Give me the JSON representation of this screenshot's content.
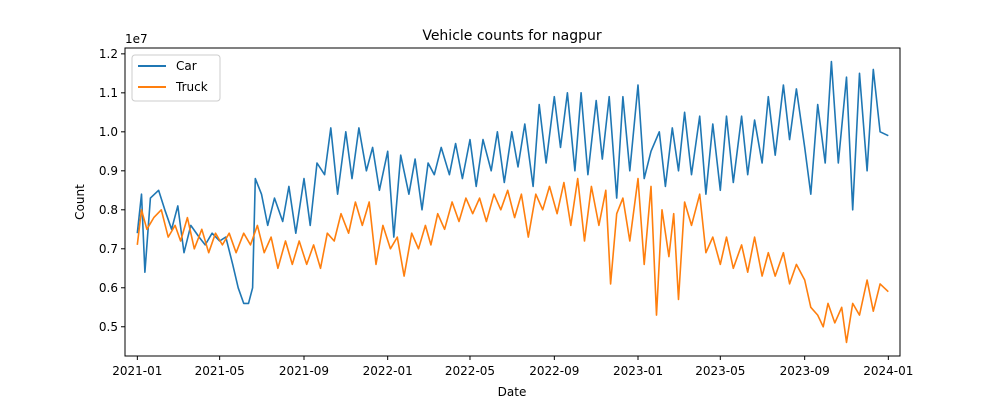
{
  "chart_data": {
    "type": "line",
    "title": "Vehicle counts for nagpur",
    "xlabel": "Date",
    "ylabel": "Count",
    "y_offset_text": "1e7",
    "x_range": [
      "2020-12-14",
      "2024-01-18"
    ],
    "ylim": [
      4.25,
      12.15
    ],
    "x_ticks": [
      "2021-01",
      "2021-05",
      "2021-09",
      "2022-01",
      "2022-05",
      "2022-09",
      "2023-01",
      "2023-05",
      "2023-09",
      "2024-01"
    ],
    "y_ticks": [
      "0.5",
      "0.6",
      "0.7",
      "0.8",
      "0.9",
      "1.0",
      "1.1",
      "1.2"
    ],
    "grid": false,
    "legend": {
      "placement": "top-left"
    },
    "series": [
      {
        "name": "Car",
        "color": "#1f77b4",
        "points": [
          [
            "2021-01-01",
            7.4
          ],
          [
            "2021-01-07",
            8.4
          ],
          [
            "2021-01-12",
            6.4
          ],
          [
            "2021-01-20",
            8.3
          ],
          [
            "2021-02-01",
            8.5
          ],
          [
            "2021-02-10",
            8.0
          ],
          [
            "2021-02-20",
            7.5
          ],
          [
            "2021-03-01",
            8.1
          ],
          [
            "2021-03-10",
            6.9
          ],
          [
            "2021-03-20",
            7.6
          ],
          [
            "2021-04-01",
            7.3
          ],
          [
            "2021-04-10",
            7.1
          ],
          [
            "2021-04-20",
            7.4
          ],
          [
            "2021-05-01",
            7.2
          ],
          [
            "2021-05-10",
            7.3
          ],
          [
            "2021-05-20",
            6.6
          ],
          [
            "2021-05-28",
            6.0
          ],
          [
            "2021-06-05",
            5.6
          ],
          [
            "2021-06-12",
            5.6
          ],
          [
            "2021-06-18",
            6.0
          ],
          [
            "2021-06-22",
            8.8
          ],
          [
            "2021-07-01",
            8.4
          ],
          [
            "2021-07-10",
            7.6
          ],
          [
            "2021-07-20",
            8.3
          ],
          [
            "2021-08-01",
            7.7
          ],
          [
            "2021-08-10",
            8.6
          ],
          [
            "2021-08-20",
            7.4
          ],
          [
            "2021-09-01",
            8.8
          ],
          [
            "2021-09-10",
            7.6
          ],
          [
            "2021-09-20",
            9.2
          ],
          [
            "2021-10-01",
            8.9
          ],
          [
            "2021-10-10",
            10.1
          ],
          [
            "2021-10-20",
            8.4
          ],
          [
            "2021-11-01",
            10.0
          ],
          [
            "2021-11-10",
            8.8
          ],
          [
            "2021-11-20",
            10.1
          ],
          [
            "2021-12-01",
            9.0
          ],
          [
            "2021-12-10",
            9.6
          ],
          [
            "2021-12-20",
            8.5
          ],
          [
            "2022-01-01",
            9.5
          ],
          [
            "2022-01-10",
            7.3
          ],
          [
            "2022-01-20",
            9.4
          ],
          [
            "2022-02-01",
            8.4
          ],
          [
            "2022-02-10",
            9.3
          ],
          [
            "2022-02-20",
            8.0
          ],
          [
            "2022-03-01",
            9.2
          ],
          [
            "2022-03-10",
            8.9
          ],
          [
            "2022-03-20",
            9.6
          ],
          [
            "2022-04-01",
            8.9
          ],
          [
            "2022-04-10",
            9.7
          ],
          [
            "2022-04-20",
            8.8
          ],
          [
            "2022-05-01",
            9.8
          ],
          [
            "2022-05-10",
            8.6
          ],
          [
            "2022-05-20",
            9.8
          ],
          [
            "2022-06-01",
            9.0
          ],
          [
            "2022-06-10",
            10.0
          ],
          [
            "2022-06-20",
            8.7
          ],
          [
            "2022-07-01",
            10.0
          ],
          [
            "2022-07-10",
            9.1
          ],
          [
            "2022-07-20",
            10.2
          ],
          [
            "2022-08-01",
            8.6
          ],
          [
            "2022-08-10",
            10.7
          ],
          [
            "2022-08-20",
            9.2
          ],
          [
            "2022-09-01",
            10.9
          ],
          [
            "2022-09-10",
            9.6
          ],
          [
            "2022-09-20",
            11.0
          ],
          [
            "2022-10-01",
            9.0
          ],
          [
            "2022-10-10",
            11.0
          ],
          [
            "2022-10-20",
            8.9
          ],
          [
            "2022-11-01",
            10.8
          ],
          [
            "2022-11-10",
            9.3
          ],
          [
            "2022-11-20",
            10.9
          ],
          [
            "2022-12-01",
            8.3
          ],
          [
            "2022-12-10",
            10.9
          ],
          [
            "2022-12-20",
            9.0
          ],
          [
            "2023-01-01",
            11.2
          ],
          [
            "2023-01-10",
            8.8
          ],
          [
            "2023-01-20",
            9.5
          ],
          [
            "2023-02-01",
            10.0
          ],
          [
            "2023-02-10",
            8.6
          ],
          [
            "2023-02-20",
            10.1
          ],
          [
            "2023-03-01",
            9.0
          ],
          [
            "2023-03-10",
            10.5
          ],
          [
            "2023-03-20",
            8.9
          ],
          [
            "2023-04-01",
            10.4
          ],
          [
            "2023-04-10",
            8.4
          ],
          [
            "2023-04-20",
            10.2
          ],
          [
            "2023-05-01",
            8.5
          ],
          [
            "2023-05-10",
            10.4
          ],
          [
            "2023-05-20",
            8.7
          ],
          [
            "2023-06-01",
            10.4
          ],
          [
            "2023-06-10",
            8.9
          ],
          [
            "2023-06-20",
            10.3
          ],
          [
            "2023-07-01",
            9.2
          ],
          [
            "2023-07-10",
            10.9
          ],
          [
            "2023-07-20",
            9.4
          ],
          [
            "2023-08-01",
            11.2
          ],
          [
            "2023-08-10",
            9.8
          ],
          [
            "2023-08-20",
            11.1
          ],
          [
            "2023-09-01",
            9.6
          ],
          [
            "2023-09-10",
            8.4
          ],
          [
            "2023-09-20",
            10.7
          ],
          [
            "2023-10-01",
            9.2
          ],
          [
            "2023-10-10",
            11.8
          ],
          [
            "2023-10-20",
            9.2
          ],
          [
            "2023-11-01",
            11.4
          ],
          [
            "2023-11-10",
            8.0
          ],
          [
            "2023-11-20",
            11.5
          ],
          [
            "2023-12-01",
            9.0
          ],
          [
            "2023-12-10",
            11.6
          ],
          [
            "2023-12-20",
            10.0
          ],
          [
            "2024-01-01",
            9.9
          ]
        ]
      },
      {
        "name": "Truck",
        "color": "#ff7f0e",
        "points": [
          [
            "2021-01-01",
            7.1
          ],
          [
            "2021-01-07",
            8.0
          ],
          [
            "2021-01-15",
            7.5
          ],
          [
            "2021-01-25",
            7.8
          ],
          [
            "2021-02-05",
            8.0
          ],
          [
            "2021-02-15",
            7.3
          ],
          [
            "2021-02-25",
            7.6
          ],
          [
            "2021-03-05",
            7.2
          ],
          [
            "2021-03-15",
            7.8
          ],
          [
            "2021-03-25",
            7.0
          ],
          [
            "2021-04-05",
            7.5
          ],
          [
            "2021-04-15",
            6.9
          ],
          [
            "2021-04-25",
            7.4
          ],
          [
            "2021-05-05",
            7.1
          ],
          [
            "2021-05-15",
            7.4
          ],
          [
            "2021-05-25",
            6.9
          ],
          [
            "2021-06-05",
            7.4
          ],
          [
            "2021-06-15",
            7.1
          ],
          [
            "2021-06-25",
            7.6
          ],
          [
            "2021-07-05",
            6.9
          ],
          [
            "2021-07-15",
            7.3
          ],
          [
            "2021-07-25",
            6.5
          ],
          [
            "2021-08-05",
            7.2
          ],
          [
            "2021-08-15",
            6.6
          ],
          [
            "2021-08-25",
            7.2
          ],
          [
            "2021-09-05",
            6.6
          ],
          [
            "2021-09-15",
            7.1
          ],
          [
            "2021-09-25",
            6.5
          ],
          [
            "2021-10-05",
            7.4
          ],
          [
            "2021-10-15",
            7.2
          ],
          [
            "2021-10-25",
            7.9
          ],
          [
            "2021-11-05",
            7.4
          ],
          [
            "2021-11-15",
            8.2
          ],
          [
            "2021-11-25",
            7.6
          ],
          [
            "2021-12-05",
            8.2
          ],
          [
            "2021-12-15",
            6.6
          ],
          [
            "2021-12-25",
            7.6
          ],
          [
            "2022-01-05",
            7.0
          ],
          [
            "2022-01-15",
            7.3
          ],
          [
            "2022-01-25",
            6.3
          ],
          [
            "2022-02-05",
            7.4
          ],
          [
            "2022-02-15",
            7.0
          ],
          [
            "2022-02-25",
            7.6
          ],
          [
            "2022-03-05",
            7.1
          ],
          [
            "2022-03-15",
            7.9
          ],
          [
            "2022-03-25",
            7.5
          ],
          [
            "2022-04-05",
            8.2
          ],
          [
            "2022-04-15",
            7.7
          ],
          [
            "2022-04-25",
            8.3
          ],
          [
            "2022-05-05",
            7.9
          ],
          [
            "2022-05-15",
            8.3
          ],
          [
            "2022-05-25",
            7.7
          ],
          [
            "2022-06-05",
            8.4
          ],
          [
            "2022-06-15",
            8.0
          ],
          [
            "2022-06-25",
            8.5
          ],
          [
            "2022-07-05",
            7.8
          ],
          [
            "2022-07-15",
            8.4
          ],
          [
            "2022-07-25",
            7.3
          ],
          [
            "2022-08-05",
            8.4
          ],
          [
            "2022-08-15",
            8.0
          ],
          [
            "2022-08-25",
            8.6
          ],
          [
            "2022-09-05",
            7.9
          ],
          [
            "2022-09-15",
            8.7
          ],
          [
            "2022-09-25",
            7.6
          ],
          [
            "2022-10-05",
            8.8
          ],
          [
            "2022-10-15",
            7.2
          ],
          [
            "2022-10-25",
            8.6
          ],
          [
            "2022-11-05",
            7.6
          ],
          [
            "2022-11-15",
            8.5
          ],
          [
            "2022-11-22",
            6.1
          ],
          [
            "2022-12-01",
            7.9
          ],
          [
            "2022-12-10",
            8.3
          ],
          [
            "2022-12-20",
            7.2
          ],
          [
            "2023-01-01",
            8.8
          ],
          [
            "2023-01-10",
            6.6
          ],
          [
            "2023-01-20",
            8.6
          ],
          [
            "2023-01-28",
            5.3
          ],
          [
            "2023-02-05",
            8.0
          ],
          [
            "2023-02-15",
            6.8
          ],
          [
            "2023-02-22",
            7.9
          ],
          [
            "2023-03-01",
            5.7
          ],
          [
            "2023-03-10",
            8.2
          ],
          [
            "2023-03-20",
            7.6
          ],
          [
            "2023-04-01",
            8.4
          ],
          [
            "2023-04-10",
            6.9
          ],
          [
            "2023-04-20",
            7.3
          ],
          [
            "2023-05-01",
            6.6
          ],
          [
            "2023-05-10",
            7.3
          ],
          [
            "2023-05-20",
            6.5
          ],
          [
            "2023-06-01",
            7.1
          ],
          [
            "2023-06-10",
            6.4
          ],
          [
            "2023-06-20",
            7.3
          ],
          [
            "2023-07-01",
            6.3
          ],
          [
            "2023-07-10",
            6.9
          ],
          [
            "2023-07-20",
            6.3
          ],
          [
            "2023-08-01",
            6.9
          ],
          [
            "2023-08-10",
            6.1
          ],
          [
            "2023-08-20",
            6.6
          ],
          [
            "2023-09-01",
            6.2
          ],
          [
            "2023-09-10",
            5.5
          ],
          [
            "2023-09-20",
            5.3
          ],
          [
            "2023-09-28",
            5.0
          ],
          [
            "2023-10-05",
            5.6
          ],
          [
            "2023-10-15",
            5.1
          ],
          [
            "2023-10-25",
            5.5
          ],
          [
            "2023-11-01",
            4.6
          ],
          [
            "2023-11-10",
            5.6
          ],
          [
            "2023-11-20",
            5.3
          ],
          [
            "2023-12-01",
            6.2
          ],
          [
            "2023-12-10",
            5.4
          ],
          [
            "2023-12-20",
            6.1
          ],
          [
            "2024-01-01",
            5.9
          ]
        ]
      }
    ]
  }
}
